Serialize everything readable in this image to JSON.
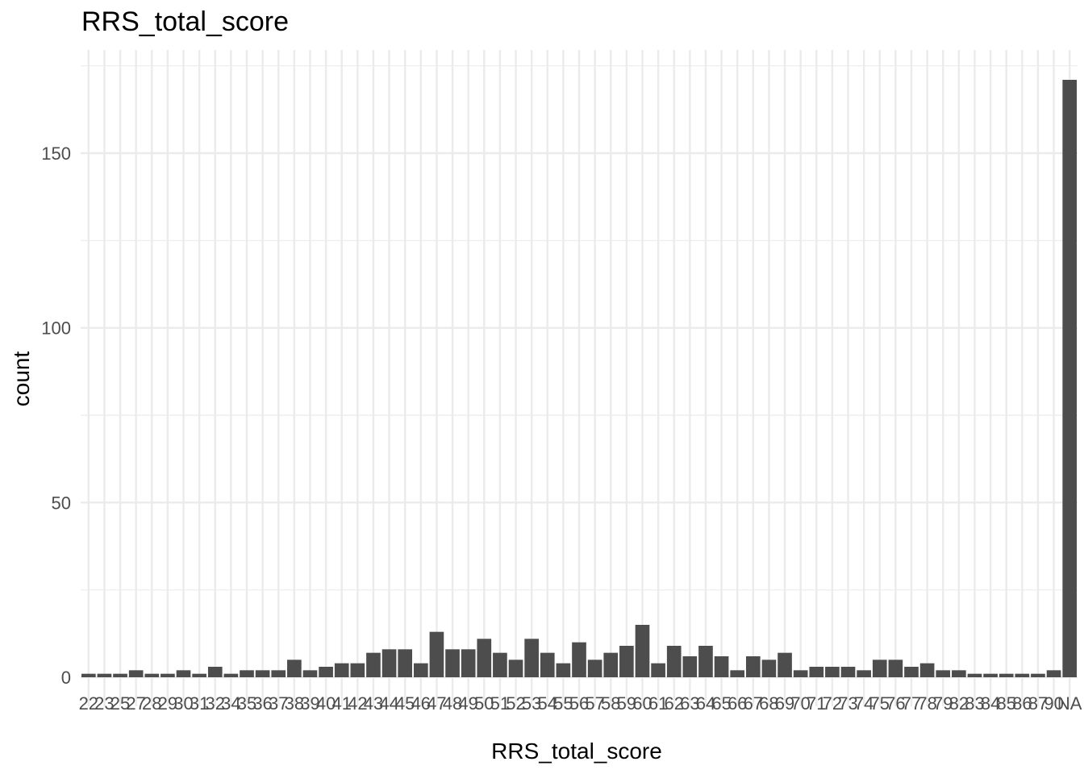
{
  "chart_data": {
    "type": "bar",
    "title": "RRS_total_score",
    "xlabel": "RRS_total_score",
    "ylabel": "count",
    "categories": [
      "22",
      "23",
      "25",
      "27",
      "28",
      "29",
      "30",
      "31",
      "32",
      "34",
      "35",
      "36",
      "37",
      "38",
      "39",
      "40",
      "41",
      "42",
      "43",
      "44",
      "45",
      "46",
      "47",
      "48",
      "49",
      "50",
      "51",
      "52",
      "53",
      "54",
      "55",
      "56",
      "57",
      "58",
      "59",
      "60",
      "61",
      "62",
      "63",
      "64",
      "65",
      "66",
      "67",
      "68",
      "69",
      "70",
      "71",
      "72",
      "73",
      "74",
      "75",
      "76",
      "77",
      "78",
      "79",
      "82",
      "83",
      "84",
      "85",
      "86",
      "87",
      "90",
      "NA"
    ],
    "values": [
      1,
      1,
      1,
      2,
      1,
      1,
      2,
      1,
      3,
      1,
      2,
      2,
      2,
      5,
      2,
      3,
      4,
      4,
      7,
      8,
      8,
      4,
      13,
      8,
      8,
      11,
      7,
      5,
      11,
      7,
      4,
      10,
      5,
      7,
      9,
      15,
      4,
      9,
      6,
      9,
      6,
      2,
      6,
      5,
      7,
      2,
      3,
      3,
      3,
      2,
      5,
      5,
      3,
      4,
      2,
      2,
      1,
      1,
      1,
      1,
      1,
      2,
      171
    ],
    "ylim": [
      -7.5,
      180
    ],
    "yticks": [
      0,
      50,
      100,
      150
    ],
    "grid": true,
    "legend": "none",
    "colors": {
      "bar": "#4d4d4d",
      "grid": "#ebebeb",
      "tick": "#4d4d4d"
    }
  }
}
